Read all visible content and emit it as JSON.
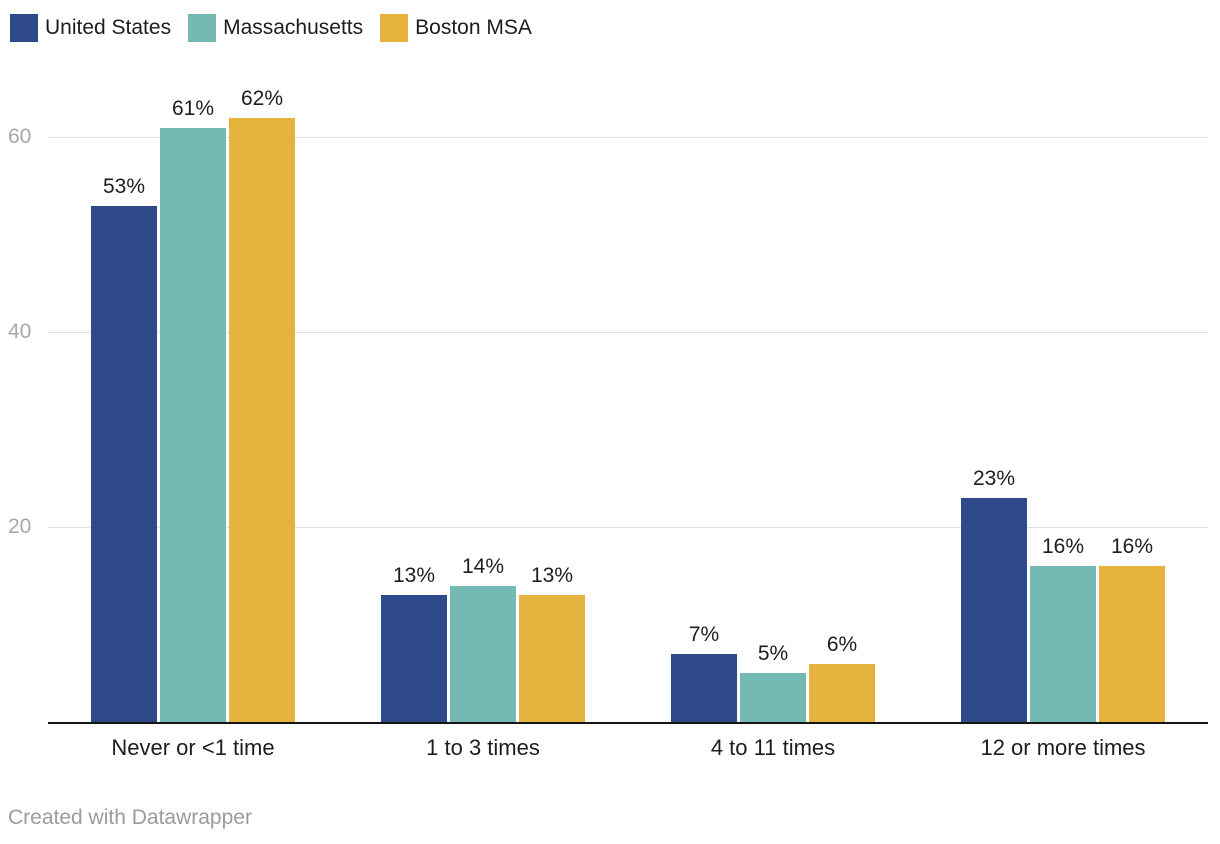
{
  "footer": {
    "credit": "Created with Datawrapper"
  },
  "chart_data": {
    "type": "bar",
    "title": "",
    "categories": [
      "Never or <1 time",
      "1 to 3 times",
      "4 to 11 times",
      "12 or more times"
    ],
    "series": [
      {
        "name": "United States",
        "color": "#2f4a8b",
        "values": [
          53,
          13,
          7,
          23
        ]
      },
      {
        "name": "Massachusetts",
        "color": "#74b9b4",
        "values": [
          61,
          14,
          5,
          16
        ]
      },
      {
        "name": "Boston MSA",
        "color": "#e6b23e",
        "values": [
          62,
          13,
          6,
          16
        ]
      }
    ],
    "value_suffix": "%",
    "yticks": [
      20,
      40,
      60
    ],
    "ylim": [
      0,
      66.4
    ],
    "grid": true,
    "legend_position": "top-left",
    "axis_color": "#151515",
    "gridline_color": "#e2e2e2",
    "tick_label_color": "#a8a8a8"
  }
}
